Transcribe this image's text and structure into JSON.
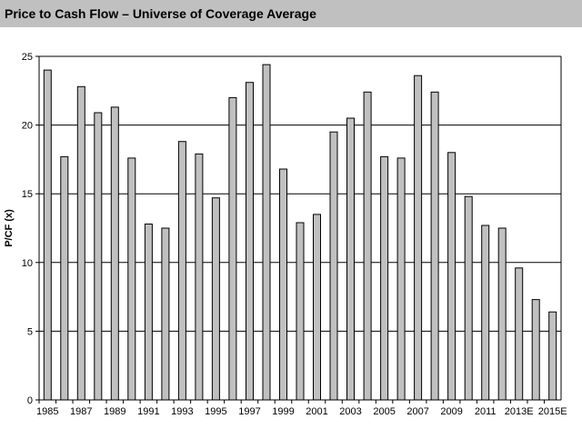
{
  "chart_data": {
    "type": "bar",
    "title": "Price to Cash Flow – Universe of Coverage Average",
    "xlabel": "",
    "ylabel": "P/CF (x)",
    "ylim": [
      0,
      25
    ],
    "yticks": [
      0,
      5,
      10,
      15,
      20,
      25
    ],
    "grid": true,
    "colors": {
      "bar_fill": "#c0c0c0",
      "bar_stroke": "#000000",
      "title_bg": "#c0c0c0"
    },
    "categories": [
      "1985",
      "1986",
      "1987",
      "1988",
      "1989",
      "1990",
      "1991",
      "1992",
      "1993",
      "1994",
      "1995",
      "1996",
      "1997",
      "1998",
      "1999",
      "2000",
      "2001",
      "2002",
      "2003",
      "2004",
      "2005",
      "2006",
      "2007",
      "2008",
      "2009",
      "2010",
      "2011",
      "2012",
      "2013E",
      "2014E",
      "2015E"
    ],
    "x_tick_labels": [
      "1985",
      "",
      "1987",
      "",
      "1989",
      "",
      "1991",
      "",
      "1993",
      "",
      "1995",
      "",
      "1997",
      "",
      "1999",
      "",
      "2001",
      "",
      "2003",
      "",
      "2005",
      "",
      "2007",
      "",
      "2009",
      "",
      "2011",
      "",
      "2013E",
      "",
      "2015E"
    ],
    "values": [
      24.0,
      17.7,
      22.8,
      20.9,
      21.3,
      17.6,
      12.8,
      12.5,
      18.8,
      17.9,
      14.7,
      22.0,
      23.1,
      24.4,
      16.8,
      12.9,
      13.5,
      19.5,
      20.5,
      22.4,
      17.7,
      17.6,
      23.6,
      22.4,
      18.0,
      14.8,
      12.7,
      12.5,
      9.6,
      7.3,
      6.4
    ]
  }
}
